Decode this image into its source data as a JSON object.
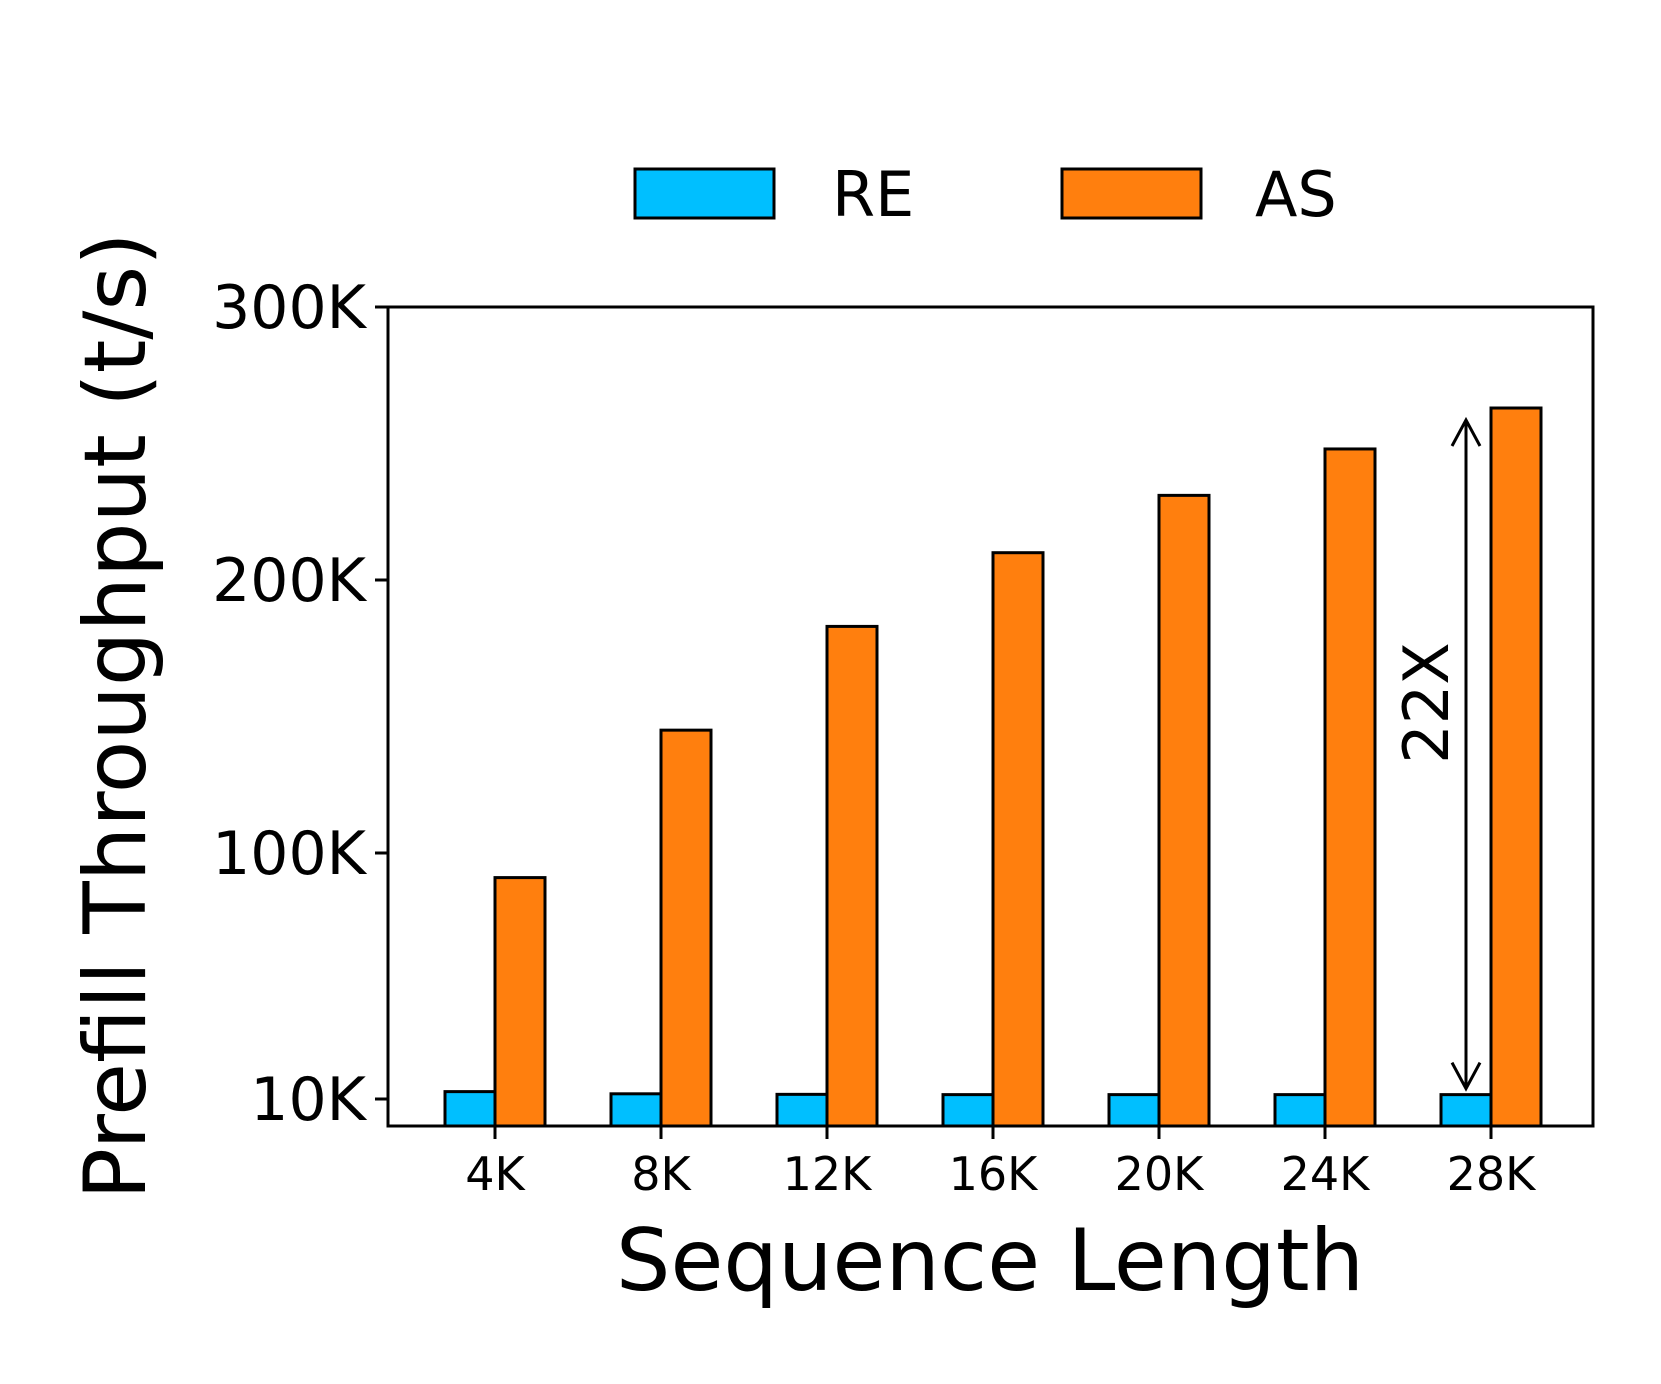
{
  "chart_data": {
    "type": "bar",
    "xlabel": "Sequence Length",
    "ylabel": "Prefill Throughput (t/s)",
    "categories": [
      "4K",
      "8K",
      "12K",
      "16K",
      "20K",
      "24K",
      "28K"
    ],
    "series": [
      {
        "name": "RE",
        "color": "#00bfff",
        "values": [
          12700,
          11900,
          11700,
          11600,
          11600,
          11600,
          11600
        ]
      },
      {
        "name": "AS",
        "color": "#ff7f0e",
        "values": [
          91000,
          145000,
          183000,
          210000,
          231000,
          248000,
          263000
        ]
      }
    ],
    "yticks": [
      {
        "value": 10000,
        "label": "10K"
      },
      {
        "value": 100000,
        "label": "100K"
      },
      {
        "value": 200000,
        "label": "200K"
      },
      {
        "value": 300000,
        "label": "300K"
      }
    ],
    "ylim": [
      0,
      300000
    ],
    "legend_position": "top-center",
    "grid": false,
    "annotations": [
      {
        "text": "22X",
        "category": "28K",
        "from_value": 11600,
        "to_value": 263000
      }
    ]
  }
}
